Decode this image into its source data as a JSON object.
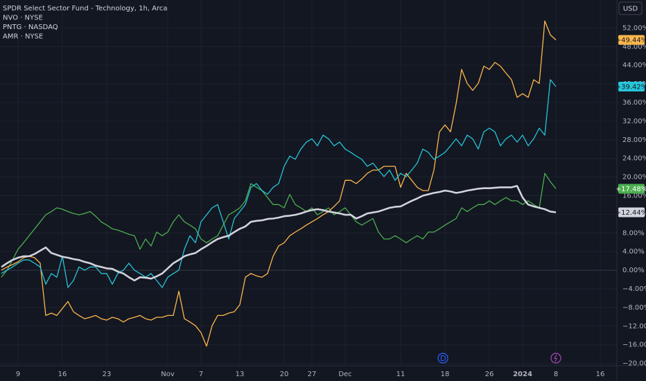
{
  "chart_data": {
    "type": "line",
    "currency": "USD",
    "categories": [
      null,
      null,
      null,
      "9",
      null,
      null,
      null,
      null,
      null,
      null,
      null,
      "16",
      null,
      null,
      null,
      null,
      null,
      null,
      null,
      "23",
      null,
      null,
      null,
      null,
      null,
      null,
      null,
      null,
      null,
      null,
      "Nov",
      null,
      null,
      null,
      null,
      null,
      "7",
      null,
      null,
      null,
      null,
      null,
      null,
      "13",
      null,
      null,
      null,
      null,
      null,
      null,
      null,
      "20",
      null,
      null,
      null,
      null,
      "27",
      null,
      null,
      null,
      null,
      null,
      "Dec",
      null,
      null,
      null,
      null,
      null,
      null,
      null,
      null,
      null,
      "11",
      null,
      null,
      null,
      null,
      null,
      null,
      null,
      "18",
      null,
      null,
      null,
      null,
      null,
      null,
      null,
      "26",
      null,
      null,
      null,
      null,
      null,
      "2024",
      null,
      null,
      null,
      null,
      null,
      "8",
      null,
      null,
      null,
      null,
      null,
      null,
      null,
      "16"
    ],
    "series": [
      {
        "name": "SPDR Select Sector Fund - Technology, 1h, Arca",
        "color": "#d1d4dc",
        "values": [
          0.7,
          1.5,
          2.2,
          2.7,
          3.0,
          3.0,
          3.5,
          4.2,
          4.9,
          3.7,
          3.3,
          2.9,
          2.7,
          2.4,
          2.2,
          1.8,
          1.5,
          1.0,
          0.7,
          0.4,
          0.3,
          -0.3,
          -0.7,
          -1.5,
          -2.2,
          -1.5,
          -1.6,
          -1.8,
          -1.3,
          -0.7,
          0.4,
          1.5,
          2.2,
          3.0,
          3.4,
          3.7,
          4.5,
          5.2,
          6.0,
          6.7,
          7.1,
          7.4,
          8.2,
          8.9,
          9.4,
          10.4,
          10.6,
          10.7,
          11.0,
          11.1,
          11.3,
          11.6,
          11.7,
          11.9,
          12.2,
          12.6,
          12.9,
          13.1,
          12.9,
          12.6,
          12.4,
          12.2,
          11.9,
          11.9,
          11.1,
          11.6,
          12.2,
          12.4,
          12.6,
          13.0,
          13.4,
          13.6,
          13.7,
          14.3,
          14.9,
          15.4,
          16.0,
          16.3,
          16.6,
          16.8,
          17.1,
          16.9,
          16.6,
          16.8,
          17.1,
          17.3,
          17.5,
          17.6,
          17.6,
          17.7,
          17.8,
          17.8,
          17.8,
          18.1,
          15.6,
          14.1,
          13.7,
          13.4,
          13.1,
          12.6,
          12.44,
          null,
          null,
          null,
          null,
          null,
          null,
          null,
          null
        ],
        "value_labels": [
          null,
          null,
          null,
          null,
          null,
          null,
          null,
          null,
          null,
          null,
          null,
          null,
          null,
          null,
          null,
          null,
          null,
          null,
          null,
          null,
          null,
          null,
          null,
          null,
          null,
          null,
          null,
          null,
          null,
          null,
          null,
          null,
          null,
          null,
          null,
          null,
          null,
          null,
          null,
          null,
          null,
          null,
          null,
          null,
          null,
          null,
          null,
          null,
          null,
          null,
          null,
          null,
          null,
          null,
          null,
          null,
          null,
          null,
          null,
          null,
          null,
          null,
          null,
          null,
          null,
          null,
          null,
          null,
          null,
          null,
          null,
          null,
          null,
          null,
          null,
          null,
          null,
          null,
          null,
          null,
          null,
          null,
          null,
          null,
          null,
          null,
          null,
          null,
          null,
          null,
          null,
          null,
          null,
          null,
          null,
          null,
          null,
          null,
          null,
          null,
          "+12.44%",
          null,
          null,
          null,
          null,
          null,
          null,
          null,
          null
        ]
      },
      {
        "name": "NVO · NYSE",
        "color": "#26c6da",
        "values": [
          -0.7,
          0,
          0.7,
          1.5,
          2.2,
          2.2,
          1.5,
          0.7,
          -3.0,
          -0.7,
          -1.5,
          3.0,
          -3.7,
          -2.2,
          0.7,
          0,
          0.7,
          0.7,
          -0.7,
          -0.7,
          -3.0,
          -0.7,
          0,
          1.5,
          0,
          -0.7,
          -1.5,
          -0.7,
          -2.2,
          -3.7,
          -1.5,
          -0.7,
          0,
          4.5,
          7.4,
          5.9,
          10.4,
          11.9,
          13.4,
          14.1,
          10.4,
          6.7,
          11.1,
          12.6,
          14.1,
          17.8,
          18.6,
          17.1,
          16.3,
          17.8,
          18.6,
          22.3,
          24.5,
          23.8,
          26.0,
          27.5,
          28.2,
          26.7,
          29.0,
          28.2,
          26.7,
          27.5,
          26.0,
          25.3,
          24.5,
          23.8,
          22.3,
          23.0,
          21.5,
          20.1,
          21.5,
          19.3,
          20.8,
          20.1,
          21.5,
          23.0,
          26.0,
          25.3,
          23.8,
          24.5,
          25.3,
          26.7,
          28.2,
          26.7,
          29.0,
          28.2,
          26.0,
          29.7,
          30.5,
          29.7,
          26.7,
          28.2,
          29.0,
          27.5,
          29.0,
          26.7,
          28.2,
          30.5,
          29.0,
          40.9,
          39.42,
          null,
          null,
          null,
          null,
          null,
          null,
          null,
          null
        ],
        "value_labels": [
          null,
          null,
          null,
          null,
          null,
          null,
          null,
          null,
          null,
          null,
          null,
          null,
          null,
          null,
          null,
          null,
          null,
          null,
          null,
          null,
          null,
          null,
          null,
          null,
          null,
          null,
          null,
          null,
          null,
          null,
          null,
          null,
          null,
          null,
          null,
          null,
          null,
          null,
          null,
          null,
          null,
          null,
          null,
          null,
          null,
          null,
          null,
          null,
          null,
          null,
          null,
          null,
          null,
          null,
          null,
          null,
          null,
          null,
          null,
          null,
          null,
          null,
          null,
          null,
          null,
          null,
          null,
          null,
          null,
          null,
          null,
          null,
          null,
          null,
          null,
          null,
          null,
          null,
          null,
          null,
          null,
          null,
          null,
          null,
          null,
          null,
          null,
          null,
          null,
          null,
          null,
          null,
          null,
          null,
          null,
          null,
          null,
          null,
          null,
          null,
          "+39.42%",
          null,
          null,
          null,
          null,
          null,
          null,
          null,
          null
        ]
      },
      {
        "name": "PNTG · NASDAQ",
        "color": "#ffb74d",
        "values": [
          0,
          0.7,
          1.2,
          1.8,
          2.7,
          3.0,
          2.7,
          1.5,
          -9.7,
          -9.2,
          -9.7,
          -8.2,
          -6.7,
          -8.9,
          -9.7,
          -10.4,
          -10.1,
          -9.7,
          -10.4,
          -10.7,
          -10.1,
          -10.4,
          -11.1,
          -10.4,
          -10.1,
          -9.7,
          -10.4,
          -10.7,
          -10.1,
          -10.1,
          -9.7,
          -9.7,
          -4.5,
          -10.4,
          -11.1,
          -11.9,
          -13.4,
          -16.3,
          -11.9,
          -9.7,
          -9.7,
          -9.2,
          -8.9,
          -7.4,
          -1.5,
          -0.7,
          -1.2,
          -1.5,
          -0.7,
          3.0,
          5.2,
          5.9,
          7.4,
          8.2,
          8.9,
          9.7,
          10.4,
          11.1,
          11.9,
          12.6,
          13.7,
          14.9,
          19.3,
          19.3,
          18.6,
          19.6,
          20.8,
          21.5,
          21.5,
          22.3,
          22.3,
          22.3,
          17.8,
          20.8,
          19.3,
          17.8,
          17.1,
          17.1,
          21.5,
          29.7,
          31.2,
          29.7,
          35.7,
          43.1,
          40.1,
          38.6,
          40.1,
          43.8,
          43.1,
          44.6,
          43.8,
          42.3,
          40.9,
          37.1,
          37.9,
          37.1,
          40.9,
          40.1,
          53.5,
          50.5,
          49.44,
          null,
          null,
          null,
          null,
          null,
          null,
          null,
          null
        ],
        "value_labels": [
          null,
          null,
          null,
          null,
          null,
          null,
          null,
          null,
          null,
          null,
          null,
          null,
          null,
          null,
          null,
          null,
          null,
          null,
          null,
          null,
          null,
          null,
          null,
          null,
          null,
          null,
          null,
          null,
          null,
          null,
          null,
          null,
          null,
          null,
          null,
          null,
          null,
          null,
          null,
          null,
          null,
          null,
          null,
          null,
          null,
          null,
          null,
          null,
          null,
          null,
          null,
          null,
          null,
          null,
          null,
          null,
          null,
          null,
          null,
          null,
          null,
          null,
          null,
          null,
          null,
          null,
          null,
          null,
          null,
          null,
          null,
          null,
          null,
          null,
          null,
          null,
          null,
          null,
          null,
          null,
          null,
          null,
          null,
          null,
          null,
          null,
          null,
          null,
          null,
          null,
          null,
          null,
          null,
          null,
          null,
          null,
          null,
          null,
          null,
          null,
          "+49.44%",
          null,
          null,
          null,
          null,
          null,
          null,
          null,
          null
        ]
      },
      {
        "name": "AMR · NYSE",
        "color": "#4caf50",
        "values": [
          -1.5,
          0,
          2.2,
          4.5,
          5.9,
          7.4,
          8.9,
          10.4,
          11.9,
          12.6,
          13.4,
          13.1,
          12.6,
          12.2,
          11.9,
          12.2,
          12.6,
          11.6,
          10.4,
          9.7,
          8.9,
          8.6,
          8.2,
          7.7,
          7.4,
          4.5,
          6.7,
          5.2,
          8.2,
          7.4,
          8.2,
          10.4,
          11.9,
          10.4,
          9.7,
          8.9,
          6.7,
          5.9,
          6.7,
          7.4,
          9.7,
          11.9,
          12.6,
          13.4,
          14.9,
          18.6,
          17.8,
          17.1,
          15.6,
          14.1,
          14.1,
          13.4,
          16.3,
          14.1,
          13.4,
          12.6,
          13.4,
          11.9,
          12.6,
          13.4,
          11.9,
          12.6,
          13.4,
          11.9,
          10.4,
          9.7,
          10.4,
          11.1,
          8.2,
          6.7,
          6.7,
          7.4,
          6.7,
          5.9,
          6.7,
          7.4,
          6.7,
          8.2,
          8.2,
          8.9,
          9.7,
          10.4,
          11.1,
          13.4,
          12.6,
          13.4,
          14.1,
          14.1,
          14.9,
          14.1,
          14.9,
          15.6,
          14.9,
          14.9,
          14.1,
          14.9,
          14.1,
          13.4,
          20.8,
          19.0,
          17.48,
          null,
          null,
          null,
          null,
          null,
          null,
          null,
          null
        ],
        "value_labels": [
          null,
          null,
          null,
          null,
          null,
          null,
          null,
          null,
          null,
          null,
          null,
          null,
          null,
          null,
          null,
          null,
          null,
          null,
          null,
          null,
          null,
          null,
          null,
          null,
          null,
          null,
          null,
          null,
          null,
          null,
          null,
          null,
          null,
          null,
          null,
          null,
          null,
          null,
          null,
          null,
          null,
          null,
          null,
          null,
          null,
          null,
          null,
          null,
          null,
          null,
          null,
          null,
          null,
          null,
          null,
          null,
          null,
          null,
          null,
          null,
          null,
          null,
          null,
          null,
          null,
          null,
          null,
          null,
          null,
          null,
          null,
          null,
          null,
          null,
          null,
          null,
          null,
          null,
          null,
          null,
          null,
          null,
          null,
          null,
          null,
          null,
          null,
          null,
          null,
          null,
          null,
          null,
          null,
          null,
          null,
          null,
          null,
          null,
          null,
          null,
          "+17.48%",
          null,
          null,
          null,
          null,
          null,
          null,
          null,
          null
        ]
      }
    ],
    "ylim": [
      -20.5,
      58
    ],
    "yticks": [
      {
        "value": -20,
        "label": "−20.00%"
      },
      {
        "value": -16,
        "label": "−16.00%"
      },
      {
        "value": -12,
        "label": "−12.00%"
      },
      {
        "value": -8,
        "label": "−8.00%"
      },
      {
        "value": -4,
        "label": "−4.00%"
      },
      {
        "value": 0,
        "label": "0.00%"
      },
      {
        "value": 4,
        "label": "4.00%"
      },
      {
        "value": 8,
        "label": "8.00%"
      },
      {
        "value": 12,
        "label": "12.00%"
      },
      {
        "value": 16,
        "label": "16.00%"
      },
      {
        "value": 20,
        "label": "20.00%"
      },
      {
        "value": 24,
        "label": "24.00%"
      },
      {
        "value": 28,
        "label": "28.00%"
      },
      {
        "value": 32,
        "label": "32.00%"
      },
      {
        "value": 36,
        "label": "36.00%"
      },
      {
        "value": 40,
        "label": "40.00%"
      },
      {
        "value": 44,
        "label": "44.00%"
      },
      {
        "value": 48,
        "label": "48.00%"
      },
      {
        "value": 52,
        "label": "52.00%"
      }
    ],
    "grid": true
  }
}
